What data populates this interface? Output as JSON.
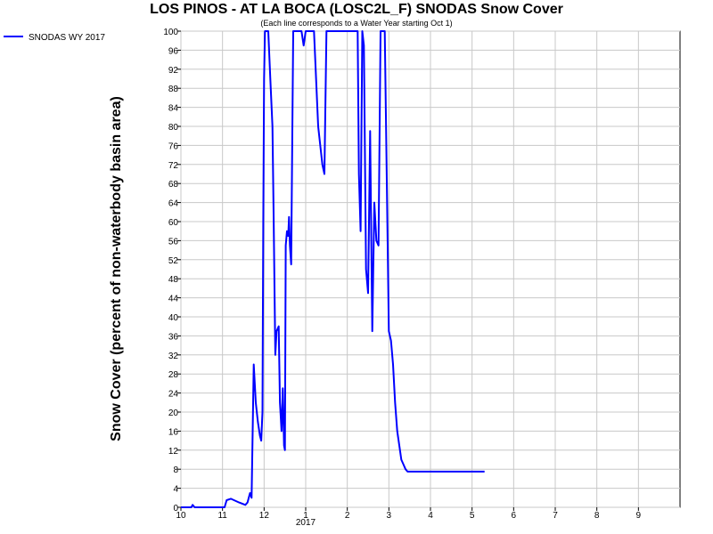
{
  "chart_data": {
    "type": "line",
    "title": "LOS PINOS - AT LA BOCA (LOSC2L_F) SNODAS Snow Cover",
    "subtitle": "(Each line corresponds to a Water Year starting Oct 1)",
    "ylabel": "Snow Cover (percent of non-waterbody basin area)",
    "xlabel": "",
    "x_ticks": [
      "10",
      "11",
      "12",
      "1",
      "2",
      "3",
      "4",
      "5",
      "6",
      "7",
      "8",
      "9"
    ],
    "x_year_label": "2017",
    "xlim": [
      0,
      12
    ],
    "ylim": [
      0,
      100
    ],
    "y_ticks": [
      0,
      4,
      8,
      12,
      16,
      20,
      24,
      28,
      32,
      36,
      40,
      44,
      48,
      52,
      56,
      60,
      64,
      68,
      72,
      76,
      80,
      84,
      88,
      92,
      96,
      100
    ],
    "grid": true,
    "legend_position": "top-left",
    "series": [
      {
        "name": "SNODAS WY 2017",
        "color": "#0000ff",
        "x": [
          0,
          0.25,
          0.28,
          0.33,
          0.6,
          0.95,
          1.05,
          1.1,
          1.2,
          1.4,
          1.55,
          1.6,
          1.66,
          1.7,
          1.75,
          1.8,
          1.85,
          1.9,
          1.93,
          1.96,
          1.98,
          2.0,
          2.02,
          2.1,
          2.15,
          2.2,
          2.23,
          2.27,
          2.3,
          2.35,
          2.38,
          2.42,
          2.45,
          2.48,
          2.5,
          2.52,
          2.55,
          2.58,
          2.6,
          2.62,
          2.65,
          2.7,
          2.72,
          2.76,
          2.8,
          2.85,
          2.9,
          2.95,
          3.0,
          3.05,
          3.1,
          3.2,
          3.3,
          3.4,
          3.45,
          3.5,
          3.52,
          3.55,
          3.57,
          3.6,
          3.62,
          3.66,
          3.7,
          3.78,
          3.82,
          3.85,
          3.9,
          3.95,
          4.0,
          4.05,
          4.1,
          4.15,
          4.2,
          4.25,
          4.28,
          4.32,
          4.36,
          4.4,
          4.45,
          4.5,
          4.55,
          4.6,
          4.65,
          4.7,
          4.75,
          4.8,
          4.85,
          4.9,
          5.0,
          5.05,
          5.1,
          5.15,
          5.2,
          5.25,
          5.3,
          5.35,
          5.4,
          5.45,
          5.5,
          5.6,
          5.7,
          5.8,
          5.9,
          6.0,
          6.1,
          6.2,
          6.3,
          6.35,
          6.4,
          6.45,
          6.5,
          6.55,
          6.6,
          6.65,
          6.7,
          6.75,
          6.8,
          6.85,
          6.9,
          7.0,
          7.1,
          7.15,
          7.2,
          7.25,
          7.3
        ],
        "y": [
          0,
          0,
          0.5,
          0,
          0,
          0,
          0,
          1.5,
          1.8,
          1,
          0.5,
          1,
          3,
          2,
          30,
          22,
          18,
          15,
          14,
          20,
          60,
          90,
          100,
          100,
          90,
          80,
          60,
          32,
          37,
          38,
          22,
          16,
          25,
          13,
          12,
          55,
          58,
          57,
          61,
          55,
          51,
          100,
          100,
          100,
          100,
          100,
          100,
          97,
          100,
          100,
          100,
          100,
          80,
          72,
          70,
          100,
          100,
          100,
          100,
          100,
          100,
          100,
          100,
          100,
          100,
          100,
          100,
          100,
          100,
          100,
          100,
          100,
          100,
          100,
          70,
          58,
          100,
          97,
          50,
          45,
          79,
          37,
          64,
          56,
          55,
          100,
          100,
          100,
          37,
          35,
          30,
          22,
          16,
          13,
          10,
          9,
          8,
          7.5,
          7.5,
          7.5,
          7.5,
          7.5,
          7.5,
          7.5,
          7.5,
          7.5,
          7.5,
          7.5,
          7.5,
          7.5,
          7.5,
          7.5,
          7.5,
          7.5,
          7.5,
          7.5,
          7.5,
          7.5,
          7.5,
          7.5,
          7.5,
          7.5,
          7.5,
          7.5,
          7.5
        ]
      }
    ]
  }
}
